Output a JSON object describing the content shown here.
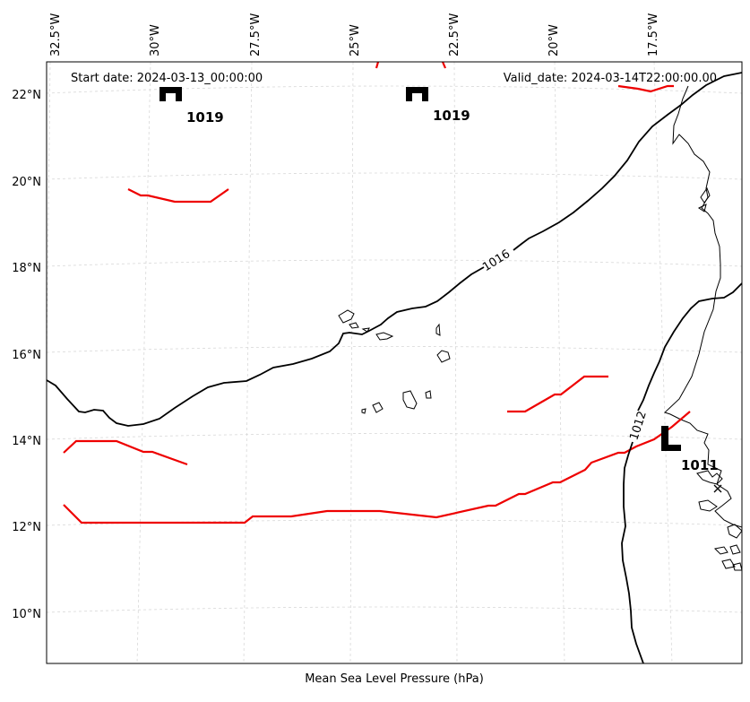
{
  "header": {
    "start_date": "Start date: 2024-03-13_00:00:00",
    "valid_date": "Valid_date: 2024-03-14T22:00:00.00"
  },
  "caption": "Mean Sea Level Pressure (hPa)",
  "lon_labels": [
    "32.5°W",
    "30°W",
    "27.5°W",
    "25°W",
    "22.5°W",
    "20°W",
    "17.5°W"
  ],
  "lat_labels": [
    "22°N",
    "20°N",
    "18°N",
    "16°N",
    "14°N",
    "12°N",
    "10°N"
  ],
  "contours": {
    "isobar_1016_label": "1016",
    "isobar_1012_label": "1012"
  },
  "pressure_centers": [
    {
      "type": "H",
      "value": "1019"
    },
    {
      "type": "H",
      "value": "1019"
    },
    {
      "type": "L",
      "value": "1011"
    }
  ],
  "colors": {
    "isobar": "#000000",
    "warm_line": "#ee0000",
    "grid": "#d8d8d8"
  }
}
